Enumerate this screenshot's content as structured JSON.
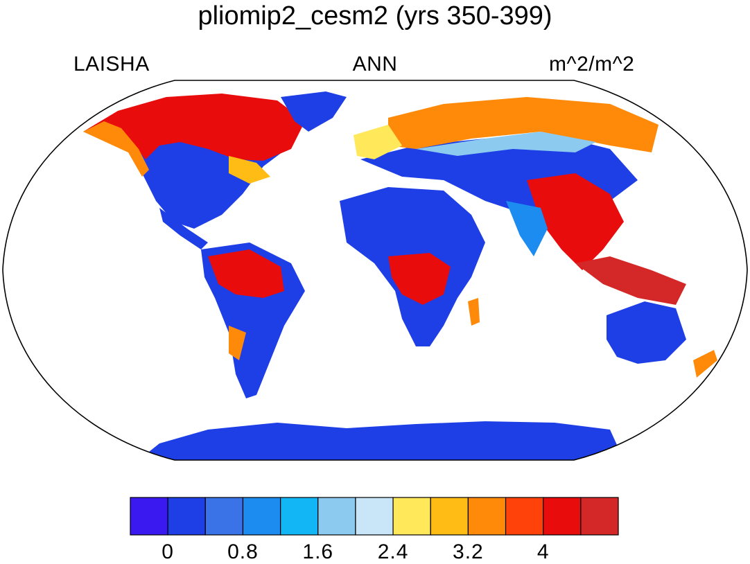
{
  "title": "pliomip2_cesm2 (yrs 350-399)",
  "subtitles": {
    "left": "LAISHA",
    "center": "ANN",
    "right": "m^2/m^2"
  },
  "colorbar": {
    "colors": [
      "#3a18f0",
      "#1e3fe6",
      "#3a73e8",
      "#1c8cf0",
      "#12b6f5",
      "#8ccaef",
      "#c8e6f8",
      "#ffe85a",
      "#ffbc14",
      "#ff8a0a",
      "#ff420a",
      "#e80c0c",
      "#d42828"
    ],
    "labels": [
      "0",
      "0.8",
      "1.6",
      "2.4",
      "3.2",
      "4"
    ]
  },
  "map": {
    "projection": "Robinson",
    "colors": {
      "low": "#1e3fe6",
      "mid": "#1c8cf0",
      "light": "#8ccaef",
      "yellow": "#ffe85a",
      "orange": "#ff8a0a",
      "red": "#e80c0c",
      "darkred": "#d42828"
    }
  }
}
